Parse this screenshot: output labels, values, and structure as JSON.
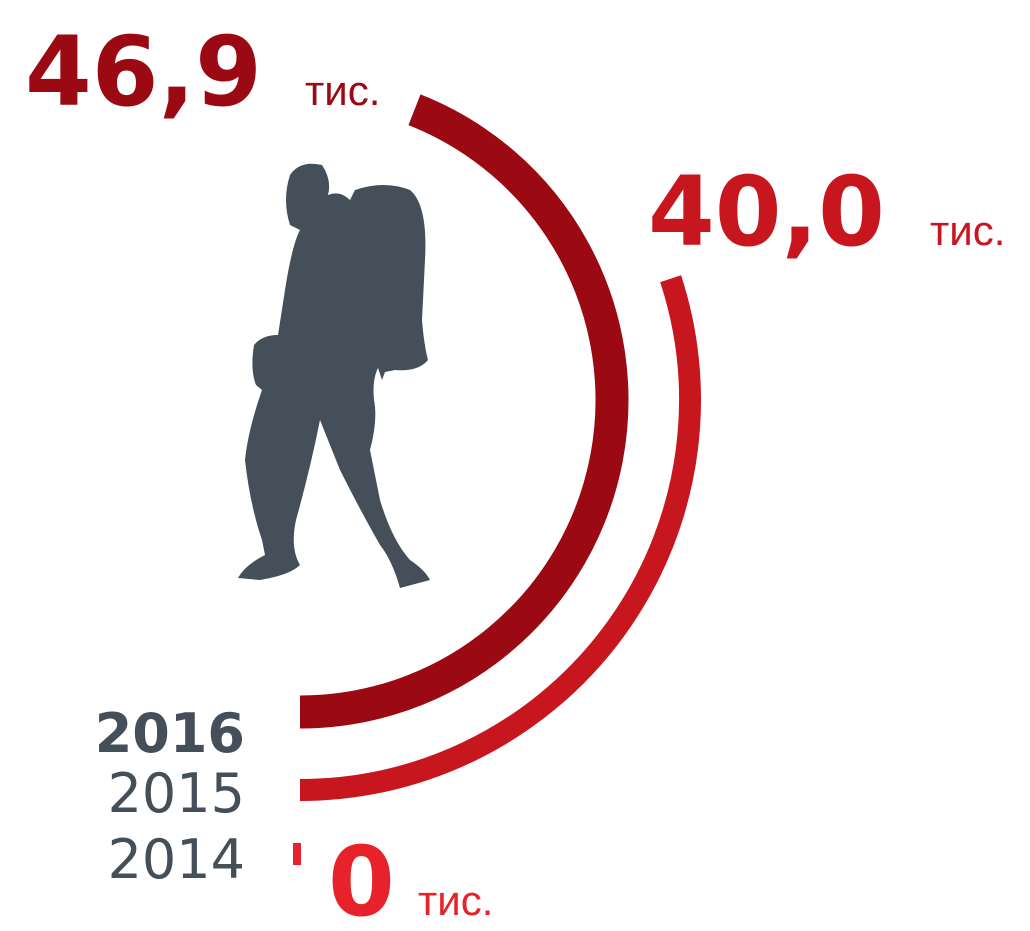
{
  "chart_data": {
    "type": "radial-bar",
    "categories": [
      "2016",
      "2015",
      "2014"
    ],
    "values": [
      46.9,
      40.0,
      0
    ],
    "value_labels": [
      "46,9",
      "40,0",
      "0"
    ],
    "unit": "тис.",
    "colors": [
      "#9b0a12",
      "#c8161e",
      "#e8222a"
    ]
  }
}
